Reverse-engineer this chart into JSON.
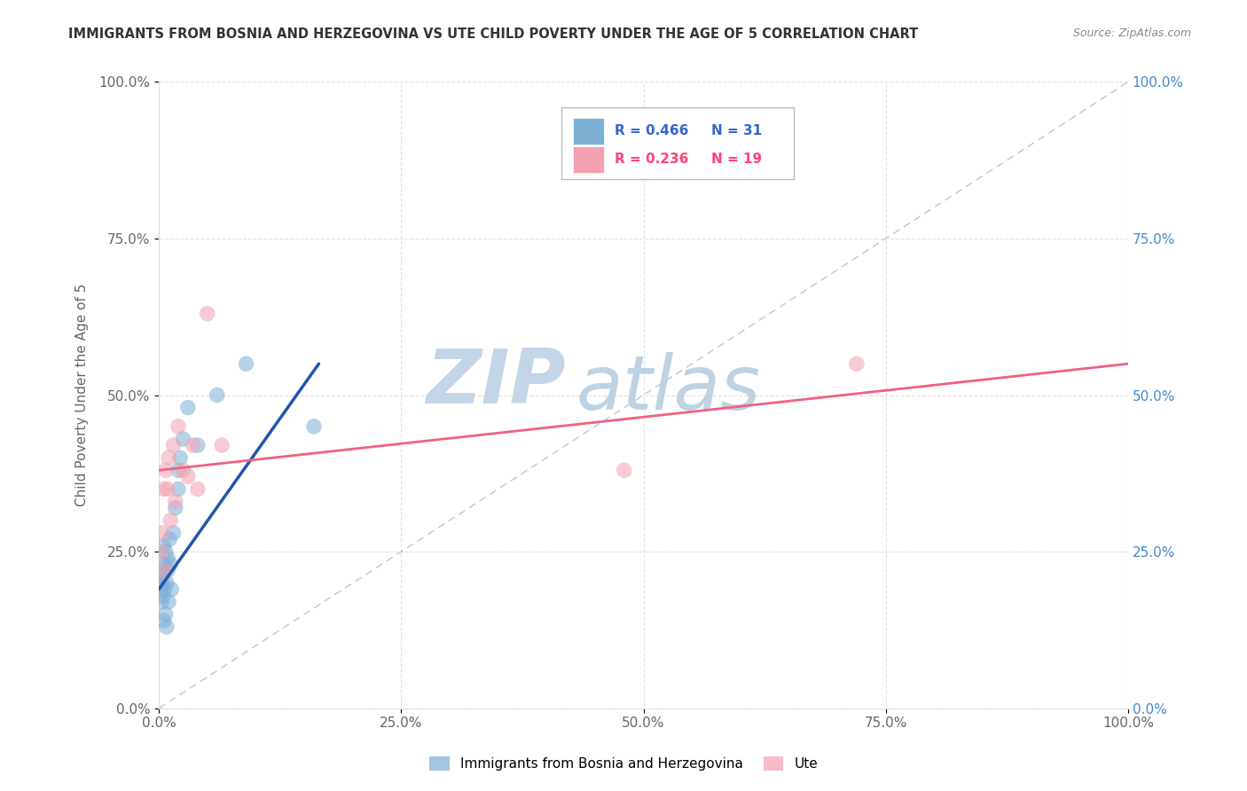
{
  "title": "IMMIGRANTS FROM BOSNIA AND HERZEGOVINA VS UTE CHILD POVERTY UNDER THE AGE OF 5 CORRELATION CHART",
  "source": "Source: ZipAtlas.com",
  "ylabel": "Child Poverty Under the Age of 5",
  "xlim": [
    0,
    1
  ],
  "ylim": [
    0,
    1
  ],
  "xticks": [
    0.0,
    0.25,
    0.5,
    0.75,
    1.0
  ],
  "yticks": [
    0.0,
    0.25,
    0.5,
    0.75,
    1.0
  ],
  "xticklabels": [
    "0.0%",
    "25.0%",
    "50.0%",
    "75.0%",
    "100.0%"
  ],
  "yticklabels_left": [
    "0.0%",
    "25.0%",
    "50.0%",
    "75.0%",
    "100.0%"
  ],
  "yticklabels_right": [
    "0.0%",
    "25.0%",
    "50.0%",
    "75.0%",
    "100.0%"
  ],
  "blue_color": "#7BAFD4",
  "pink_color": "#F4A0B0",
  "blue_trend_color": "#2255AA",
  "pink_trend_color": "#F06080",
  "blue_label": "Immigrants from Bosnia and Herzegovina",
  "pink_label": "Ute",
  "blue_R": "0.466",
  "blue_N": "31",
  "pink_R": "0.236",
  "pink_N": "19",
  "blue_scatter_x": [
    0.002,
    0.002,
    0.003,
    0.003,
    0.004,
    0.004,
    0.005,
    0.005,
    0.005,
    0.006,
    0.007,
    0.007,
    0.008,
    0.008,
    0.009,
    0.009,
    0.01,
    0.011,
    0.012,
    0.013,
    0.015,
    0.017,
    0.02,
    0.02,
    0.022,
    0.025,
    0.03,
    0.04,
    0.06,
    0.09,
    0.16
  ],
  "blue_scatter_y": [
    0.19,
    0.21,
    0.17,
    0.22,
    0.18,
    0.2,
    0.14,
    0.23,
    0.26,
    0.19,
    0.15,
    0.25,
    0.13,
    0.2,
    0.24,
    0.22,
    0.17,
    0.27,
    0.23,
    0.19,
    0.28,
    0.32,
    0.35,
    0.38,
    0.4,
    0.43,
    0.48,
    0.42,
    0.5,
    0.55,
    0.45
  ],
  "pink_scatter_x": [
    0.002,
    0.003,
    0.005,
    0.006,
    0.007,
    0.009,
    0.01,
    0.012,
    0.015,
    0.017,
    0.02,
    0.025,
    0.03,
    0.035,
    0.04,
    0.05,
    0.065,
    0.48,
    0.72
  ],
  "pink_scatter_y": [
    0.25,
    0.28,
    0.35,
    0.22,
    0.38,
    0.35,
    0.4,
    0.3,
    0.42,
    0.33,
    0.45,
    0.38,
    0.37,
    0.42,
    0.35,
    0.63,
    0.42,
    0.38,
    0.55
  ],
  "blue_trend_x": [
    0.0,
    0.165
  ],
  "blue_trend_y": [
    0.19,
    0.55
  ],
  "pink_trend_x": [
    0.0,
    1.0
  ],
  "pink_trend_y": [
    0.38,
    0.55
  ],
  "diag_line_color": "#AABBCC",
  "watermark_zip": "ZIP",
  "watermark_atlas": "atlas",
  "watermark_color_zip": "#C5D5E8",
  "watermark_color_atlas": "#B8CEDE",
  "background_color": "#FFFFFF",
  "grid_color": "#E0E0E0",
  "left_tick_color": "#666666",
  "right_tick_color": "#4488CC",
  "title_color": "#333333",
  "source_color": "#888888",
  "legend_R_color": "#3366CC",
  "legend_pink_R_color": "#FF4477"
}
